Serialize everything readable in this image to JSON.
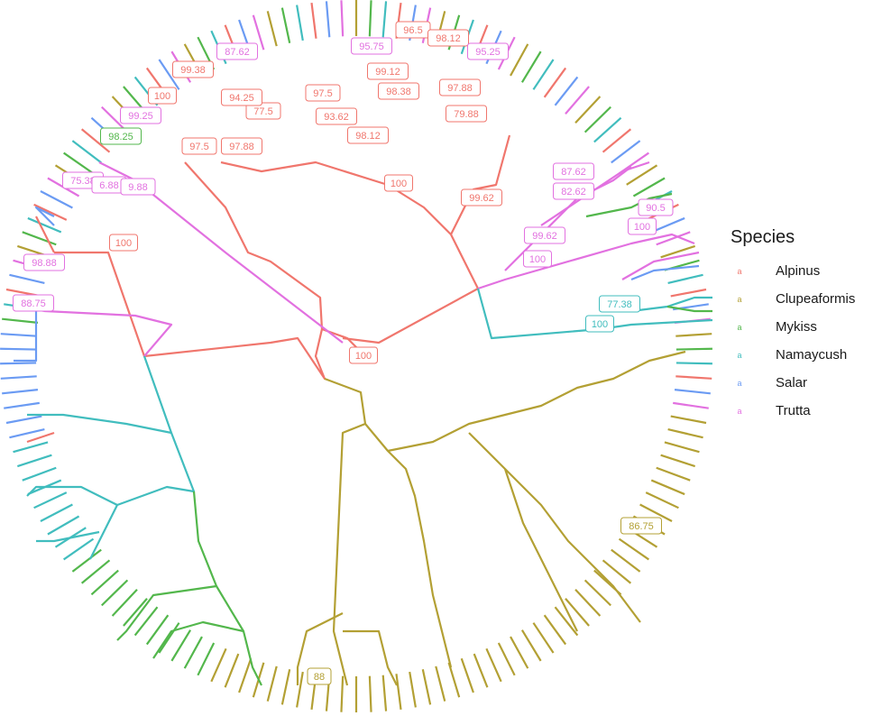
{
  "legend": {
    "title": "Species",
    "key_glyph": "a",
    "items": [
      {
        "label": "Alpinus",
        "color": "#F0766D"
      },
      {
        "label": "Clupeaformis",
        "color": "#B3A034"
      },
      {
        "label": "Mykiss",
        "color": "#53B74C"
      },
      {
        "label": "Namaycush",
        "color": "#41BDBE"
      },
      {
        "label": "Salar",
        "color": "#6B9BF3"
      },
      {
        "label": "Trutta",
        "color": "#E271E0"
      }
    ]
  },
  "bootstrap_labels": [
    {
      "text": "100",
      "species": "Alpinus"
    },
    {
      "text": "100",
      "species": "Alpinus"
    },
    {
      "text": "100",
      "species": "Alpinus"
    },
    {
      "text": "100",
      "species": "Alpinus"
    },
    {
      "text": "99.62",
      "species": "Alpinus"
    },
    {
      "text": "98.12",
      "species": "Alpinus"
    },
    {
      "text": "93.62",
      "species": "Alpinus"
    },
    {
      "text": "97.5",
      "species": "Alpinus"
    },
    {
      "text": "77.5",
      "species": "Alpinus"
    },
    {
      "text": "94.25",
      "species": "Alpinus"
    },
    {
      "text": "97.88",
      "species": "Alpinus"
    },
    {
      "text": "97.5",
      "species": "Alpinus"
    },
    {
      "text": "99.38",
      "species": "Alpinus"
    },
    {
      "text": "98.38",
      "species": "Alpinus"
    },
    {
      "text": "99.12",
      "species": "Alpinus"
    },
    {
      "text": "96.5",
      "species": "Alpinus"
    },
    {
      "text": "98.12",
      "species": "Alpinus"
    },
    {
      "text": "97.88",
      "species": "Alpinus"
    },
    {
      "text": "79.88",
      "species": "Alpinus"
    },
    {
      "text": "87.62",
      "species": "Trutta"
    },
    {
      "text": "95.75",
      "species": "Trutta"
    },
    {
      "text": "95.25",
      "species": "Trutta"
    },
    {
      "text": "99.25",
      "species": "Trutta"
    },
    {
      "text": "75.38",
      "species": "Trutta"
    },
    {
      "text": "6.88",
      "species": "Trutta"
    },
    {
      "text": "9.88",
      "species": "Trutta"
    },
    {
      "text": "98.88",
      "species": "Trutta"
    },
    {
      "text": "88.75",
      "species": "Trutta"
    },
    {
      "text": "87.62",
      "species": "Trutta"
    },
    {
      "text": "82.62",
      "species": "Trutta"
    },
    {
      "text": "99.62",
      "species": "Trutta"
    },
    {
      "text": "100",
      "species": "Trutta"
    },
    {
      "text": "90.5",
      "species": "Trutta"
    },
    {
      "text": "100",
      "species": "Trutta"
    },
    {
      "text": "98.25",
      "species": "Mykiss"
    },
    {
      "text": "77.38",
      "species": "Namaycush"
    },
    {
      "text": "100",
      "species": "Namaycush"
    },
    {
      "text": "86.75",
      "species": "Clupeaformis"
    },
    {
      "text": "88",
      "species": "Clupeaformis"
    }
  ],
  "tree_segments": [
    {
      "color": "#F0766D",
      "points": [
        [
          405,
          395
        ],
        [
          385,
          375
        ],
        [
          357,
          365
        ],
        [
          355,
          330
        ],
        [
          300,
          290
        ],
        [
          275,
          280
        ],
        [
          250,
          230
        ],
        [
          205,
          180
        ]
      ]
    },
    {
      "color": "#F0766D",
      "points": [
        [
          380,
          375
        ],
        [
          420,
          380
        ],
        [
          530,
          320
        ],
        [
          500,
          260
        ],
        [
          470,
          230
        ],
        [
          430,
          205
        ],
        [
          350,
          180
        ],
        [
          290,
          190
        ],
        [
          245,
          180
        ]
      ]
    },
    {
      "color": "#F0766D",
      "points": [
        [
          500,
          260
        ],
        [
          525,
          210
        ],
        [
          550,
          205
        ],
        [
          565,
          150
        ]
      ]
    },
    {
      "color": "#F0766D",
      "points": [
        [
          357,
          365
        ],
        [
          350,
          395
        ],
        [
          360,
          420
        ],
        [
          330,
          375
        ],
        [
          300,
          380
        ],
        [
          160,
          395
        ],
        [
          120,
          280
        ],
        [
          60,
          280
        ]
      ]
    },
    {
      "color": "#F0766D",
      "points": [
        [
          60,
          280
        ],
        [
          40,
          240
        ]
      ]
    },
    {
      "color": "#F0766D",
      "points": [
        [
          60,
          480
        ],
        [
          30,
          490
        ]
      ]
    },
    {
      "color": "#E271E0",
      "points": [
        [
          380,
          380
        ],
        [
          250,
          280
        ],
        [
          150,
          200
        ],
        [
          110,
          180
        ]
      ]
    },
    {
      "color": "#E271E0",
      "points": [
        [
          160,
          395
        ],
        [
          190,
          360
        ],
        [
          150,
          350
        ],
        [
          50,
          345
        ],
        [
          20,
          340
        ]
      ]
    },
    {
      "color": "#E271E0",
      "points": [
        [
          530,
          320
        ],
        [
          560,
          310
        ],
        [
          700,
          270
        ],
        [
          745,
          260
        ],
        [
          770,
          270
        ]
      ]
    },
    {
      "color": "#E271E0",
      "points": [
        [
          560,
          300
        ],
        [
          600,
          260
        ],
        [
          640,
          220
        ],
        [
          680,
          200
        ],
        [
          700,
          185
        ]
      ]
    },
    {
      "color": "#E271E0",
      "points": [
        [
          600,
          250
        ],
        [
          660,
          210
        ],
        [
          690,
          190
        ],
        [
          720,
          180
        ]
      ]
    },
    {
      "color": "#E271E0",
      "points": [
        [
          690,
          310
        ],
        [
          725,
          290
        ],
        [
          775,
          280
        ]
      ]
    },
    {
      "color": "#41BDBE",
      "points": [
        [
          530,
          320
        ],
        [
          545,
          375
        ],
        [
          665,
          365
        ],
        [
          700,
          360
        ],
        [
          790,
          355
        ]
      ]
    },
    {
      "color": "#41BDBE",
      "points": [
        [
          700,
          345
        ],
        [
          740,
          340
        ],
        [
          770,
          330
        ],
        [
          790,
          330
        ]
      ]
    },
    {
      "color": "#41BDBE",
      "points": [
        [
          160,
          395
        ],
        [
          190,
          480
        ],
        [
          215,
          545
        ],
        [
          185,
          540
        ],
        [
          130,
          560
        ],
        [
          100,
          620
        ]
      ]
    },
    {
      "color": "#41BDBE",
      "points": [
        [
          190,
          480
        ],
        [
          140,
          470
        ],
        [
          70,
          460
        ],
        [
          30,
          460
        ]
      ]
    },
    {
      "color": "#41BDBE",
      "points": [
        [
          130,
          560
        ],
        [
          90,
          540
        ],
        [
          40,
          540
        ],
        [
          30,
          550
        ]
      ]
    },
    {
      "color": "#41BDBE",
      "points": [
        [
          110,
          590
        ],
        [
          60,
          600
        ],
        [
          40,
          600
        ]
      ]
    },
    {
      "color": "#53B74C",
      "points": [
        [
          215,
          545
        ],
        [
          220,
          600
        ],
        [
          240,
          650
        ],
        [
          270,
          700
        ],
        [
          280,
          740
        ],
        [
          290,
          760
        ]
      ]
    },
    {
      "color": "#53B74C",
      "points": [
        [
          240,
          650
        ],
        [
          170,
          660
        ],
        [
          140,
          700
        ],
        [
          130,
          710
        ]
      ]
    },
    {
      "color": "#53B74C",
      "points": [
        [
          270,
          700
        ],
        [
          225,
          690
        ],
        [
          190,
          700
        ],
        [
          170,
          730
        ]
      ]
    },
    {
      "color": "#53B74C",
      "points": [
        [
          740,
          340
        ],
        [
          770,
          345
        ],
        [
          790,
          345
        ]
      ]
    },
    {
      "color": "#53B74C",
      "points": [
        [
          650,
          240
        ],
        [
          700,
          230
        ],
        [
          720,
          220
        ],
        [
          745,
          215
        ]
      ]
    },
    {
      "color": "#6B9BF3",
      "points": [
        [
          40,
          340
        ],
        [
          40,
          380
        ],
        [
          40,
          400
        ],
        [
          15,
          400
        ]
      ]
    },
    {
      "color": "#6B9BF3",
      "points": [
        [
          700,
          310
        ],
        [
          725,
          300
        ],
        [
          775,
          295
        ]
      ]
    },
    {
      "color": "#6B9BF3",
      "points": [
        [
          60,
          250
        ],
        [
          40,
          230
        ],
        [
          60,
          240
        ]
      ]
    },
    {
      "color": "#B3A034",
      "points": [
        [
          360,
          420
        ],
        [
          400,
          435
        ],
        [
          405,
          470
        ],
        [
          380,
          480
        ],
        [
          370,
          700
        ],
        [
          380,
          740
        ],
        [
          385,
          760
        ]
      ]
    },
    {
      "color": "#B3A034",
      "points": [
        [
          405,
          470
        ],
        [
          430,
          500
        ],
        [
          450,
          520
        ],
        [
          460,
          550
        ],
        [
          470,
          600
        ],
        [
          480,
          660
        ],
        [
          490,
          700
        ],
        [
          500,
          740
        ]
      ]
    },
    {
      "color": "#B3A034",
      "points": [
        [
          430,
          500
        ],
        [
          480,
          490
        ],
        [
          520,
          470
        ],
        [
          560,
          460
        ],
        [
          600,
          450
        ],
        [
          640,
          430
        ],
        [
          680,
          420
        ],
        [
          720,
          400
        ],
        [
          760,
          390
        ]
      ]
    },
    {
      "color": "#B3A034",
      "points": [
        [
          520,
          480
        ],
        [
          560,
          520
        ],
        [
          600,
          560
        ],
        [
          630,
          600
        ],
        [
          680,
          650
        ],
        [
          710,
          690
        ]
      ]
    },
    {
      "color": "#B3A034",
      "points": [
        [
          560,
          520
        ],
        [
          580,
          580
        ],
        [
          600,
          620
        ],
        [
          620,
          660
        ],
        [
          640,
          700
        ]
      ]
    },
    {
      "color": "#B3A034",
      "points": [
        [
          380,
          680
        ],
        [
          340,
          700
        ],
        [
          330,
          740
        ],
        [
          330,
          760
        ]
      ]
    },
    {
      "color": "#B3A034",
      "points": [
        [
          380,
          700
        ],
        [
          420,
          700
        ],
        [
          430,
          740
        ],
        [
          440,
          760
        ]
      ]
    }
  ]
}
